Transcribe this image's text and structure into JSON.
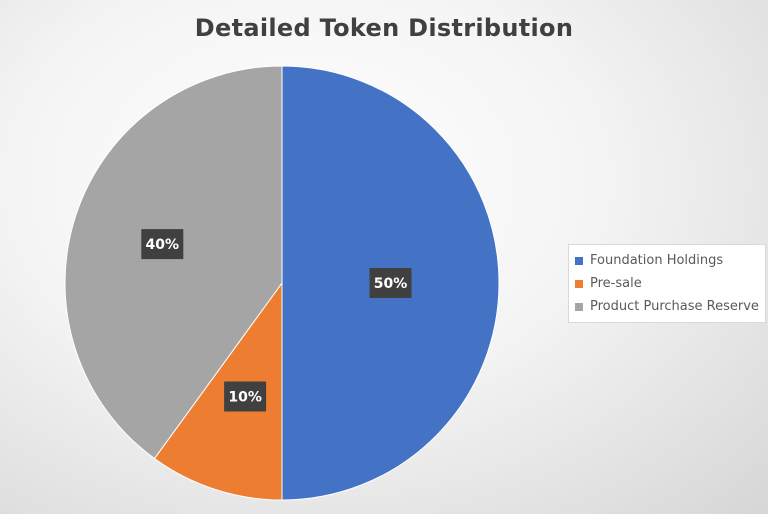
{
  "chart_data": {
    "type": "pie",
    "title": "Detailed Token Distribution",
    "categories": [
      "Foundation Holdings",
      "Pre-sale",
      "Product Purchase Reserve"
    ],
    "values": [
      50,
      10,
      40
    ],
    "data_labels": [
      "50%",
      "10%",
      "40%"
    ],
    "colors": [
      "#4472C4",
      "#ED7D31",
      "#A5A5A5"
    ],
    "legend_placement": "right",
    "start_angle": "12 o'clock",
    "direction": "clockwise"
  }
}
